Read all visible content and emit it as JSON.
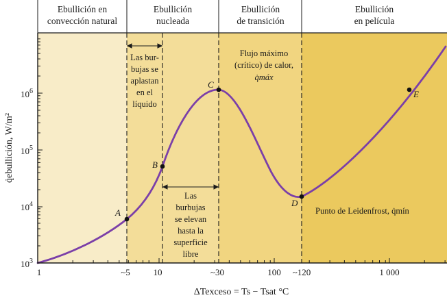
{
  "regions": [
    {
      "title_lines": [
        "Ebullición en",
        "convección natural"
      ],
      "color": "#f8ecc8"
    },
    {
      "title_lines": [
        "Ebullición",
        "nucleada"
      ],
      "color": "#f3dd99"
    },
    {
      "title_lines": [
        "Ebullición",
        "de transición"
      ],
      "color": "#f1d580"
    },
    {
      "title_lines": [
        "Ebullición",
        "en película"
      ],
      "color": "#ebc95e"
    }
  ],
  "boundaries": [
    5,
    10,
    30,
    120
  ],
  "notes": {
    "bubbles_collapse": [
      "Las bur-",
      "bujas se",
      "aplastan",
      "en el",
      "líquido"
    ],
    "bubbles_rise": [
      "Las",
      "burbujas",
      "se elevan",
      "hasta la",
      "superficie",
      "libre"
    ],
    "max_flux": [
      "Flujo máximo",
      "(crítico) de calor,",
      "q̇máx"
    ],
    "leidenfrost": "Punto de Leidenfrost, q̇mín"
  },
  "points": [
    {
      "label": "A",
      "x": 5,
      "y": 6000
    },
    {
      "label": "B",
      "x": 10,
      "y": 50000
    },
    {
      "label": "C",
      "x": 30,
      "y": 1200000
    },
    {
      "label": "D",
      "x": 120,
      "y": 15000
    },
    {
      "label": "E",
      "x": 2000,
      "y": 1200000
    }
  ],
  "x_ticks": [
    "1",
    "~5",
    "10",
    "~30",
    "100",
    "~120",
    "1 000"
  ],
  "y_ticks": [
    {
      "base": "10",
      "exp": "3"
    },
    {
      "base": "10",
      "exp": "4"
    },
    {
      "base": "10",
      "exp": "5"
    },
    {
      "base": "10",
      "exp": "6"
    }
  ],
  "x_axis_title": "ΔTexceso = Ts − Tsat  °C",
  "y_axis_title": "q̇ebullición, W/m²",
  "colors": {
    "curve": "#7b3fa8",
    "axis": "#1a1a1a",
    "point": "#111111"
  }
}
